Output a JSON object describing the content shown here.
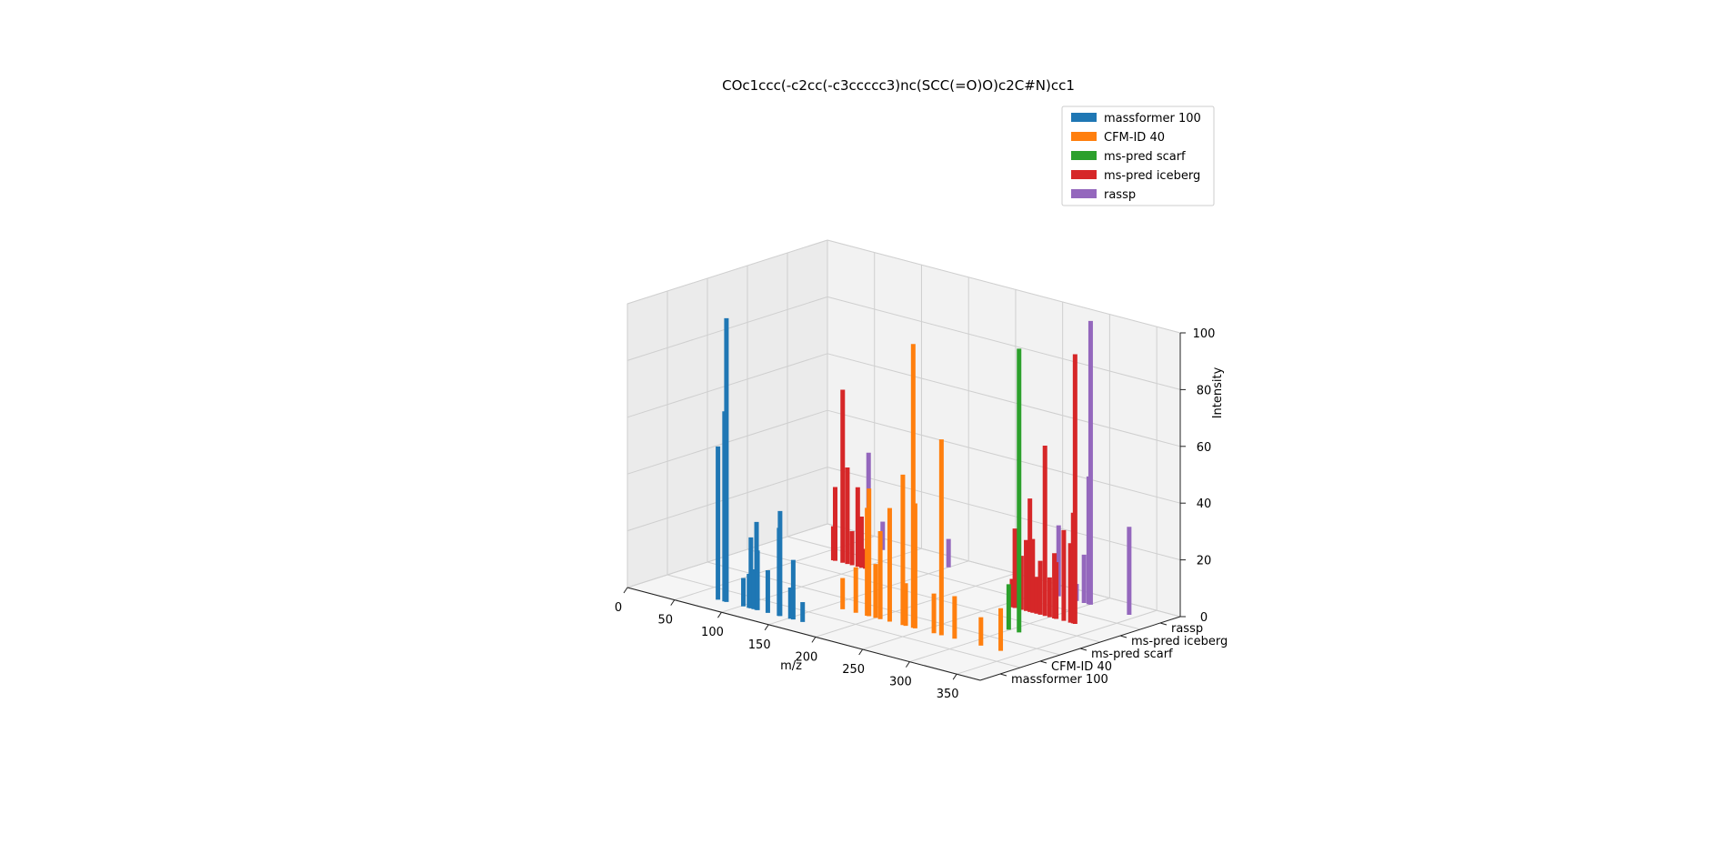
{
  "chart_data": {
    "type": "bar",
    "title": "COc1ccc(-c2cc(-c3ccccc3)nc(SCC(=O)O)c2C#N)cc1",
    "xlabel": "m/z",
    "ylabel": "",
    "zlabel": "Intensity",
    "xlim": [
      0,
      375
    ],
    "zlim": [
      0,
      100
    ],
    "x_ticks": [
      "0",
      "50",
      "100",
      "150",
      "200",
      "250",
      "300",
      "350"
    ],
    "z_ticks": [
      "0",
      "20",
      "40",
      "60",
      "80",
      "100"
    ],
    "grid": true,
    "legend_position": "top-right",
    "series": [
      {
        "name": "massformer 100",
        "color": "#1f77b4",
        "peaks": [
          {
            "mz": 75,
            "intensity": 54
          },
          {
            "mz": 82,
            "intensity": 67
          },
          {
            "mz": 84,
            "intensity": 100
          },
          {
            "mz": 102,
            "intensity": 10
          },
          {
            "mz": 108,
            "intensity": 12
          },
          {
            "mz": 110,
            "intensity": 25
          },
          {
            "mz": 113,
            "intensity": 14
          },
          {
            "mz": 116,
            "intensity": 31
          },
          {
            "mz": 117,
            "intensity": 21
          },
          {
            "mz": 128,
            "intensity": 15
          },
          {
            "mz": 140,
            "intensity": 31
          },
          {
            "mz": 141,
            "intensity": 37
          },
          {
            "mz": 152,
            "intensity": 11
          },
          {
            "mz": 155,
            "intensity": 21
          },
          {
            "mz": 165,
            "intensity": 7
          }
        ]
      },
      {
        "name": "CFM-ID 40",
        "color": "#ff7f0e",
        "peaks": [
          {
            "mz": 165,
            "intensity": 11
          },
          {
            "mz": 179,
            "intensity": 16
          },
          {
            "mz": 191,
            "intensity": 38
          },
          {
            "mz": 193,
            "intensity": 45
          },
          {
            "mz": 200,
            "intensity": 19
          },
          {
            "mz": 205,
            "intensity": 31
          },
          {
            "mz": 215,
            "intensity": 40
          },
          {
            "mz": 229,
            "intensity": 53
          },
          {
            "mz": 232,
            "intensity": 15
          },
          {
            "mz": 240,
            "intensity": 100
          },
          {
            "mz": 242,
            "intensity": 44
          },
          {
            "mz": 262,
            "intensity": 14
          },
          {
            "mz": 270,
            "intensity": 69
          },
          {
            "mz": 284,
            "intensity": 15
          },
          {
            "mz": 312,
            "intensity": 10
          },
          {
            "mz": 333,
            "intensity": 15
          }
        ]
      },
      {
        "name": "ms-pred scarf",
        "color": "#2ca02c",
        "peaks": [
          {
            "mz": 299,
            "intensity": 16
          },
          {
            "mz": 310,
            "intensity": 100
          }
        ]
      },
      {
        "name": "ms-pred iceberg",
        "color": "#d62728",
        "peaks": [
          {
            "mz": 70,
            "intensity": 12
          },
          {
            "mz": 72,
            "intensity": 26
          },
          {
            "mz": 80,
            "intensity": 61
          },
          {
            "mz": 85,
            "intensity": 34
          },
          {
            "mz": 90,
            "intensity": 12
          },
          {
            "mz": 96,
            "intensity": 28
          },
          {
            "mz": 100,
            "intensity": 18
          },
          {
            "mz": 104,
            "intensity": 7
          },
          {
            "mz": 260,
            "intensity": 10
          },
          {
            "mz": 263,
            "intensity": 28
          },
          {
            "mz": 270,
            "intensity": 19
          },
          {
            "mz": 275,
            "intensity": 25
          },
          {
            "mz": 279,
            "intensity": 40
          },
          {
            "mz": 282,
            "intensity": 26
          },
          {
            "mz": 286,
            "intensity": 13
          },
          {
            "mz": 290,
            "intensity": 19
          },
          {
            "mz": 295,
            "intensity": 60
          },
          {
            "mz": 300,
            "intensity": 14
          },
          {
            "mz": 305,
            "intensity": 23
          },
          {
            "mz": 307,
            "intensity": 20
          },
          {
            "mz": 315,
            "intensity": 32
          },
          {
            "mz": 322,
            "intensity": 28
          },
          {
            "mz": 325,
            "intensity": 39
          },
          {
            "mz": 327,
            "intensity": 95
          }
        ]
      },
      {
        "name": "rassp",
        "color": "#9467bd",
        "peaks": [
          {
            "mz": 65,
            "intensity": 33
          },
          {
            "mz": 80,
            "intensity": 10
          },
          {
            "mz": 150,
            "intensity": 10
          },
          {
            "mz": 267,
            "intensity": 25
          },
          {
            "mz": 286,
            "intensity": 6
          },
          {
            "mz": 294,
            "intensity": 17
          },
          {
            "mz": 299,
            "intensity": 45
          },
          {
            "mz": 301,
            "intensity": 100
          },
          {
            "mz": 342,
            "intensity": 31
          }
        ]
      }
    ]
  }
}
